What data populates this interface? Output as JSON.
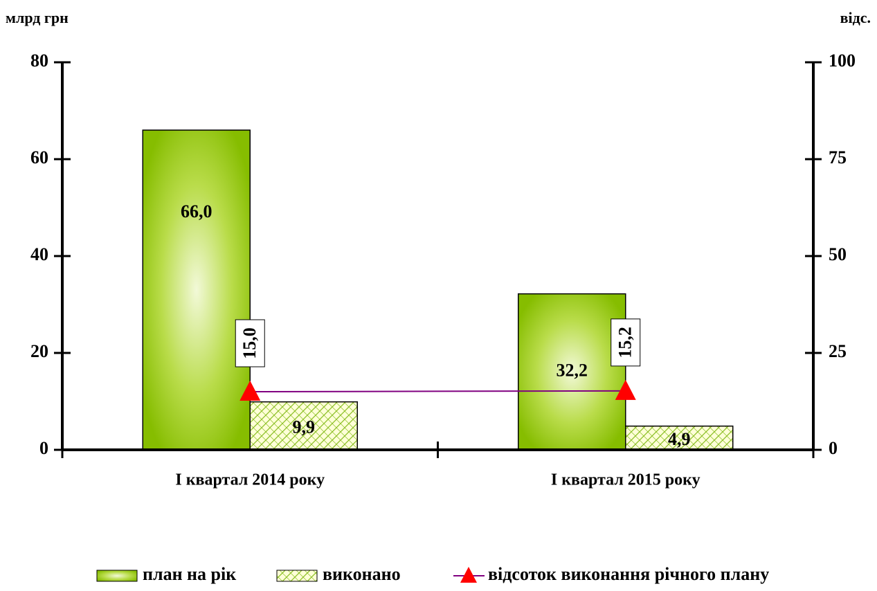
{
  "chart_data": {
    "type": "bar",
    "y_axis_label": "млрд грн",
    "y2_axis_label": "відс.",
    "categories": [
      "I квартал 2014 року",
      "I квартал 2015 року"
    ],
    "series": [
      {
        "name": "план на рік",
        "type": "bar",
        "color": "#8fc400",
        "values": [
          66.0,
          32.2
        ],
        "value_labels": [
          "66,0",
          "32,2"
        ]
      },
      {
        "name": "виконано",
        "type": "bar",
        "color": "#9acd32",
        "values": [
          9.9,
          4.9
        ],
        "value_labels": [
          "9,9",
          "4,9"
        ]
      },
      {
        "name": "відсоток виконання річного плану",
        "type": "line",
        "axis": "y2",
        "color": "#800080",
        "marker_color": "#ff0000",
        "values": [
          15.0,
          15.2
        ],
        "value_labels": [
          "15,0",
          "15,2"
        ]
      }
    ],
    "ylim": [
      0,
      80
    ],
    "yticks": [
      0,
      20,
      40,
      60,
      80
    ],
    "y2lim": [
      0,
      100
    ],
    "y2ticks": [
      0,
      25,
      50,
      75,
      100
    ]
  }
}
